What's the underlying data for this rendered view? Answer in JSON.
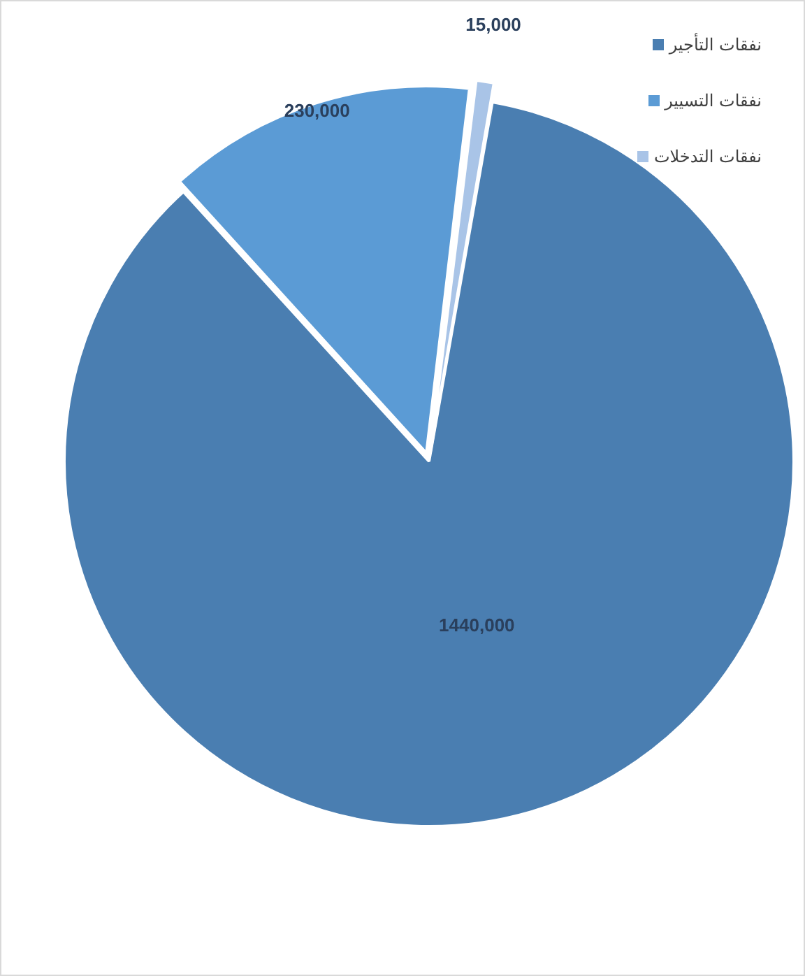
{
  "chart_data": {
    "type": "pie",
    "categories": [
      "نفقات التأجير",
      "نفقات التسيير",
      "نفقات التدخلات"
    ],
    "values": [
      1440000,
      230000,
      15000
    ],
    "colors": [
      "#4a7eb1",
      "#5b9bd5",
      "#a9c4e7"
    ],
    "value_labels": [
      "1440,000",
      "230,000",
      "15,000"
    ],
    "legend": "top right"
  }
}
